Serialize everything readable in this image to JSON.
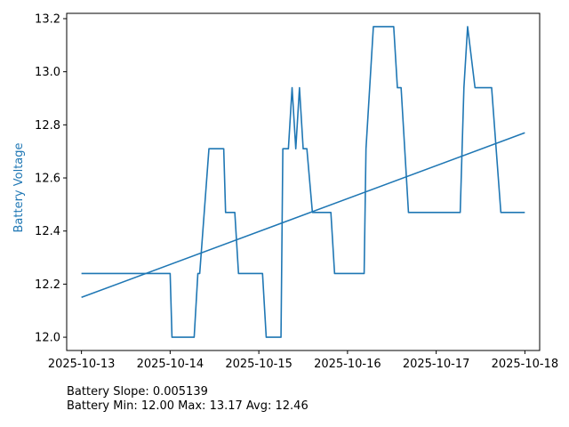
{
  "chart_data": {
    "type": "line",
    "title": "",
    "xlabel": "",
    "ylabel": "Battery Voltage",
    "xlim": [
      "2025-10-12T20:00",
      "2025-10-18T04:00"
    ],
    "ylim": [
      11.95,
      13.22
    ],
    "x_ticks": [
      "2025-10-13",
      "2025-10-14",
      "2025-10-15",
      "2025-10-16",
      "2025-10-17",
      "2025-10-18"
    ],
    "y_ticks": [
      "12.0",
      "12.2",
      "12.4",
      "12.6",
      "12.8",
      "13.0",
      "13.2"
    ],
    "grid": false,
    "legend": "none",
    "colors": {
      "series": "#1f77b4",
      "ylabel": "#1f77b4"
    },
    "series": [
      {
        "x": [
          "2025-10-13T00:00",
          "2025-10-14T00:00",
          "2025-10-14T00:30",
          "2025-10-14T06:30",
          "2025-10-14T07:30",
          "2025-10-14T08:00",
          "2025-10-14T10:30",
          "2025-10-14T14:30",
          "2025-10-14T15:00",
          "2025-10-14T17:30",
          "2025-10-14T18:30",
          "2025-10-15T01:00",
          "2025-10-15T02:00",
          "2025-10-15T06:00",
          "2025-10-15T06:30",
          "2025-10-15T08:00",
          "2025-10-15T09:00",
          "2025-10-15T10:00",
          "2025-10-15T11:00",
          "2025-10-15T12:00",
          "2025-10-15T13:00",
          "2025-10-15T14:30",
          "2025-10-15T15:30",
          "2025-10-15T19:30",
          "2025-10-15T20:30",
          "2025-10-16T04:30",
          "2025-10-16T05:00",
          "2025-10-16T07:00",
          "2025-10-16T08:00",
          "2025-10-16T12:30",
          "2025-10-16T13:30",
          "2025-10-16T14:30",
          "2025-10-16T16:30",
          "2025-10-17T06:30",
          "2025-10-17T07:30",
          "2025-10-17T08:30",
          "2025-10-17T10:30",
          "2025-10-17T15:00",
          "2025-10-17T17:30",
          "2025-10-17T23:59"
        ],
        "y": [
          12.24,
          12.24,
          12.0,
          12.0,
          12.24,
          12.24,
          12.71,
          12.71,
          12.47,
          12.47,
          12.24,
          12.24,
          12.0,
          12.0,
          12.71,
          12.71,
          12.94,
          12.71,
          12.94,
          12.71,
          12.71,
          12.47,
          12.47,
          12.47,
          12.24,
          12.24,
          12.71,
          13.17,
          13.17,
          13.17,
          12.94,
          12.94,
          12.47,
          12.47,
          12.94,
          13.17,
          12.94,
          12.94,
          12.47,
          12.47
        ]
      },
      {
        "x": [
          "2025-10-13T00:00",
          "2025-10-17T23:59"
        ],
        "y": [
          12.15,
          12.77
        ]
      }
    ],
    "annotations": [
      "Battery Slope: 0.005139",
      "Battery Min: 12.00 Max: 13.17 Avg: 12.46"
    ]
  }
}
